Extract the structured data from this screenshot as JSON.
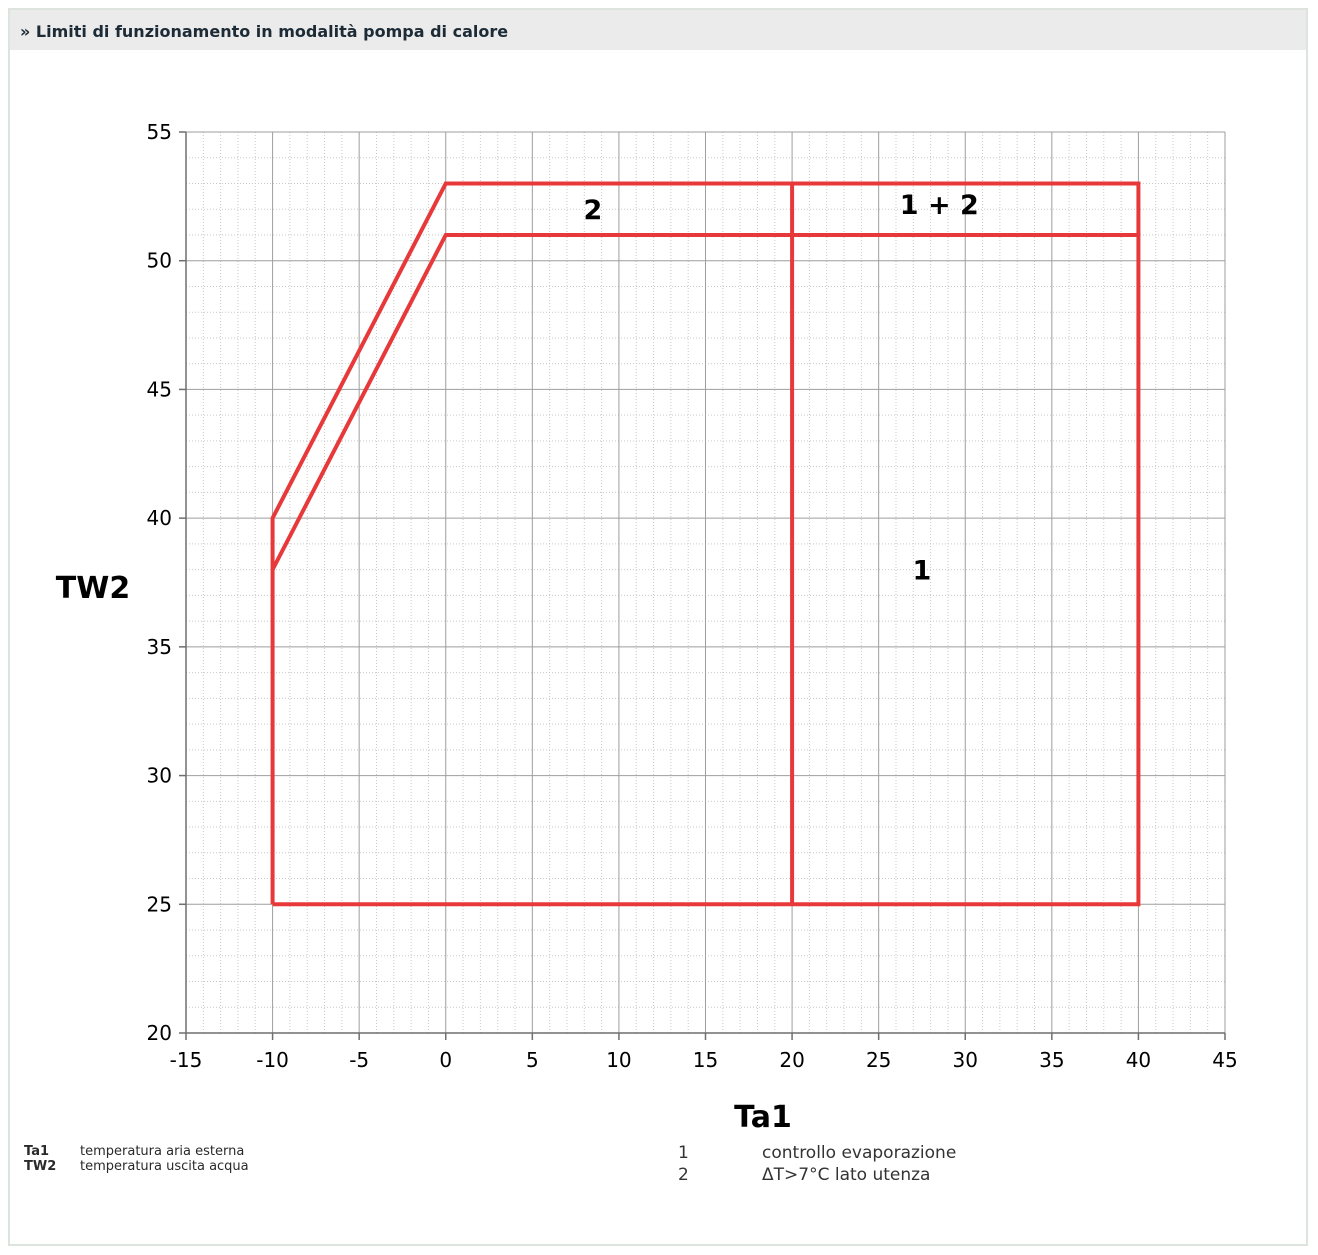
{
  "header": {
    "title": "» Limiti di funzionamento in modalità pompa di calore"
  },
  "chart_data": {
    "type": "line",
    "xlabel": "Ta1",
    "ylabel": "TW2",
    "xlim": [
      -15,
      45
    ],
    "ylim": [
      20,
      55
    ],
    "xticks": [
      -15,
      -10,
      -5,
      0,
      5,
      10,
      15,
      20,
      25,
      30,
      35,
      40,
      45
    ],
    "yticks": [
      20,
      25,
      30,
      35,
      40,
      45,
      50,
      55
    ],
    "grid": true,
    "minor_grid": true,
    "line_color": "#e8393a",
    "series": [
      {
        "points": [
          [
            -10,
            25
          ],
          [
            -10,
            40
          ],
          [
            0,
            53
          ],
          [
            40,
            53
          ],
          [
            40,
            25
          ],
          [
            -10,
            25
          ]
        ]
      },
      {
        "points": [
          [
            -10,
            38
          ],
          [
            0,
            51
          ],
          [
            40,
            51
          ]
        ]
      },
      {
        "points": [
          [
            20,
            25
          ],
          [
            20,
            53
          ]
        ]
      }
    ],
    "annotations": [
      {
        "text": "2",
        "x": 8.5,
        "y": 52
      },
      {
        "text": "1 + 2",
        "x": 28.5,
        "y": 52.2
      },
      {
        "text": "1",
        "x": 27.5,
        "y": 38
      }
    ]
  },
  "legend_left": [
    {
      "key": "Ta1",
      "desc": "temperatura aria esterna"
    },
    {
      "key": "TW2",
      "desc": "temperatura uscita acqua"
    }
  ],
  "legend_right": [
    {
      "key": "1",
      "desc": "controllo evaporazione"
    },
    {
      "key": "2",
      "desc": "ΔT>7°C lato utenza"
    }
  ]
}
